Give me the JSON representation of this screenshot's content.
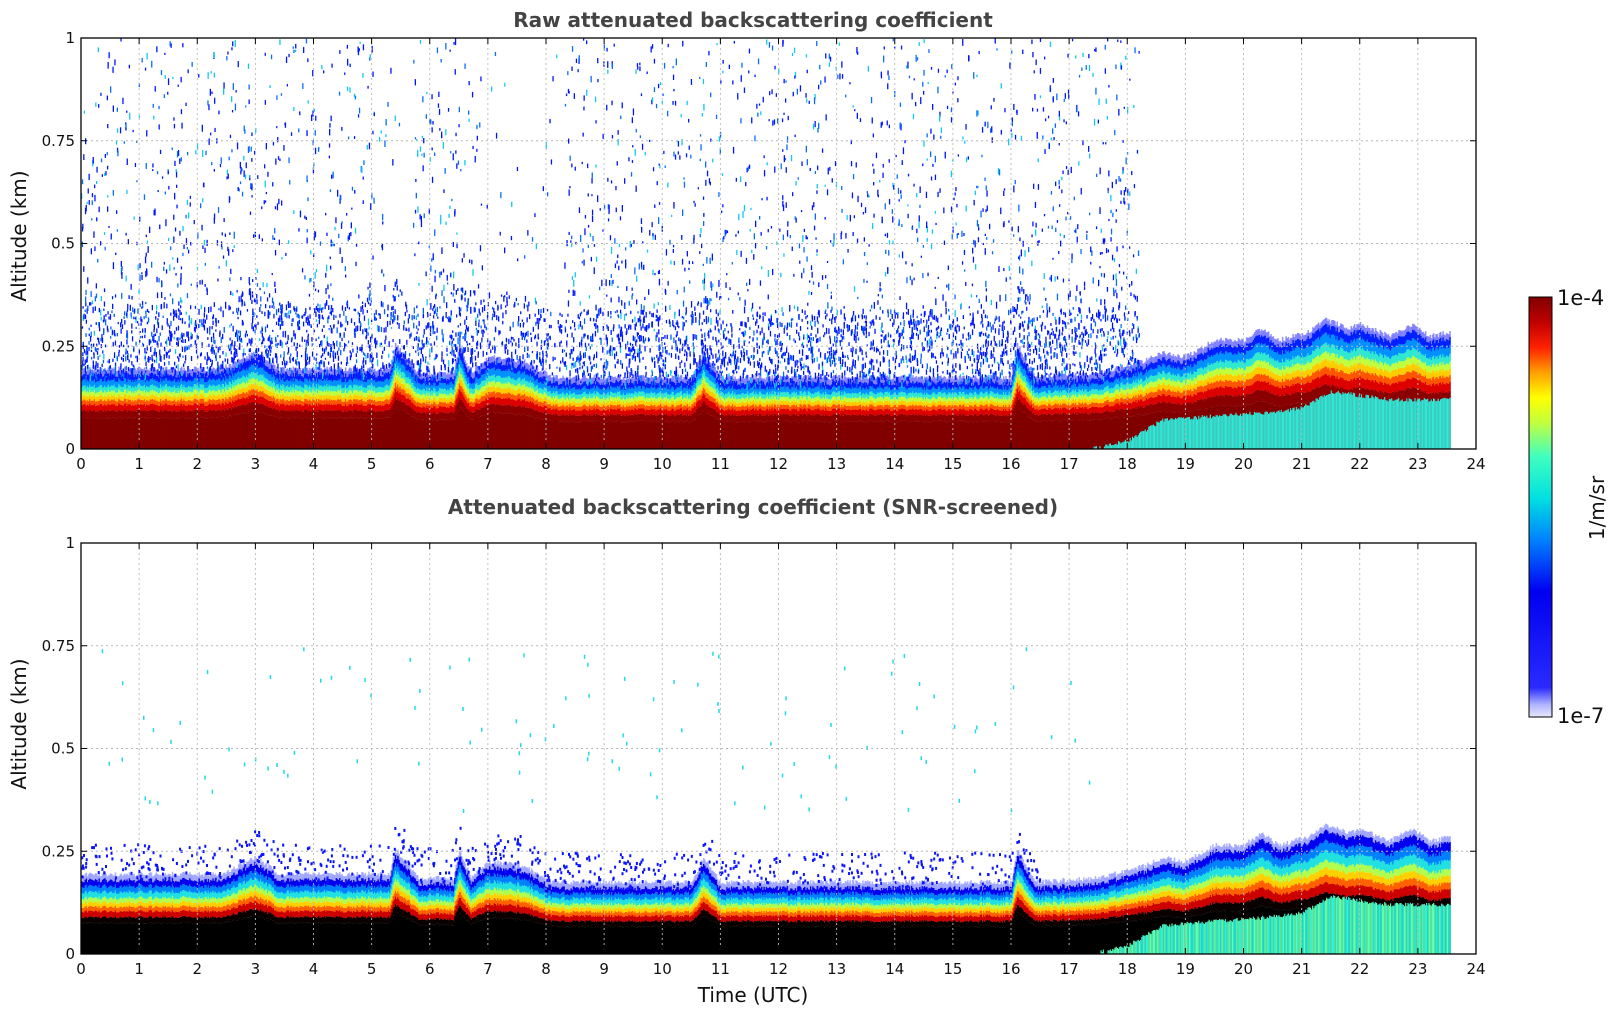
{
  "chart_data": [
    {
      "type": "heatmap",
      "title": "Raw attenuated backscattering coefficient",
      "xlabel": "",
      "ylabel": "Altitude (km)",
      "xlim": [
        0,
        24
      ],
      "ylim": [
        0,
        1
      ],
      "xticks": [
        "0",
        "1",
        "2",
        "3",
        "4",
        "5",
        "6",
        "7",
        "8",
        "9",
        "10",
        "11",
        "12",
        "13",
        "14",
        "15",
        "16",
        "17",
        "18",
        "19",
        "20",
        "21",
        "22",
        "23",
        "24"
      ],
      "yticks": [
        "0",
        "0.25",
        "0.5",
        "0.75",
        "1"
      ],
      "grid": true,
      "data_end_hour": 23.55,
      "noise_end_hour": 18.2,
      "screened": false
    },
    {
      "type": "heatmap",
      "title": "Attenuated backscattering coefficient (SNR-screened)",
      "xlabel": "Time (UTC)",
      "ylabel": "Altitude (km)",
      "xlim": [
        0,
        24
      ],
      "ylim": [
        0,
        1
      ],
      "xticks": [
        "0",
        "1",
        "2",
        "3",
        "4",
        "5",
        "6",
        "7",
        "8",
        "9",
        "10",
        "11",
        "12",
        "13",
        "14",
        "15",
        "16",
        "17",
        "18",
        "19",
        "20",
        "21",
        "22",
        "23",
        "24"
      ],
      "yticks": [
        "0",
        "0.25",
        "0.5",
        "0.75",
        "1"
      ],
      "grid": true,
      "data_end_hour": 23.55,
      "screened": true
    }
  ],
  "colorbar": {
    "label": "1/m/sr",
    "max_label": "1e-4",
    "min_label": "1e-7",
    "colormap": "jet",
    "saturated_color": "#000000"
  },
  "layer_top_km": [
    [
      0,
      0.18
    ],
    [
      2.4,
      0.18
    ],
    [
      3.0,
      0.22
    ],
    [
      3.4,
      0.18
    ],
    [
      5.3,
      0.18
    ],
    [
      5.4,
      0.24
    ],
    [
      5.8,
      0.17
    ],
    [
      6.4,
      0.17
    ],
    [
      6.5,
      0.24
    ],
    [
      6.7,
      0.17
    ],
    [
      7.0,
      0.21
    ],
    [
      7.6,
      0.2
    ],
    [
      8.1,
      0.16
    ],
    [
      10.5,
      0.16
    ],
    [
      10.7,
      0.22
    ],
    [
      11.0,
      0.16
    ],
    [
      16.0,
      0.16
    ],
    [
      16.1,
      0.24
    ],
    [
      16.4,
      0.16
    ],
    [
      17.5,
      0.17
    ],
    [
      18.3,
      0.2
    ],
    [
      18.6,
      0.22
    ],
    [
      19.0,
      0.21
    ],
    [
      19.5,
      0.25
    ],
    [
      20.0,
      0.25
    ],
    [
      20.3,
      0.28
    ],
    [
      20.6,
      0.25
    ],
    [
      21.1,
      0.27
    ],
    [
      21.4,
      0.3
    ],
    [
      21.8,
      0.28
    ],
    [
      22.0,
      0.29
    ],
    [
      22.5,
      0.26
    ],
    [
      22.9,
      0.29
    ],
    [
      23.2,
      0.26
    ],
    [
      23.55,
      0.27
    ]
  ],
  "aerosol_top_km": [
    [
      0,
      0.0
    ],
    [
      17.4,
      0.0
    ],
    [
      18.0,
      0.02
    ],
    [
      18.6,
      0.07
    ],
    [
      19.5,
      0.08
    ],
    [
      20.5,
      0.09
    ],
    [
      21.0,
      0.1
    ],
    [
      21.5,
      0.14
    ],
    [
      22.5,
      0.12
    ],
    [
      23.55,
      0.12
    ]
  ]
}
